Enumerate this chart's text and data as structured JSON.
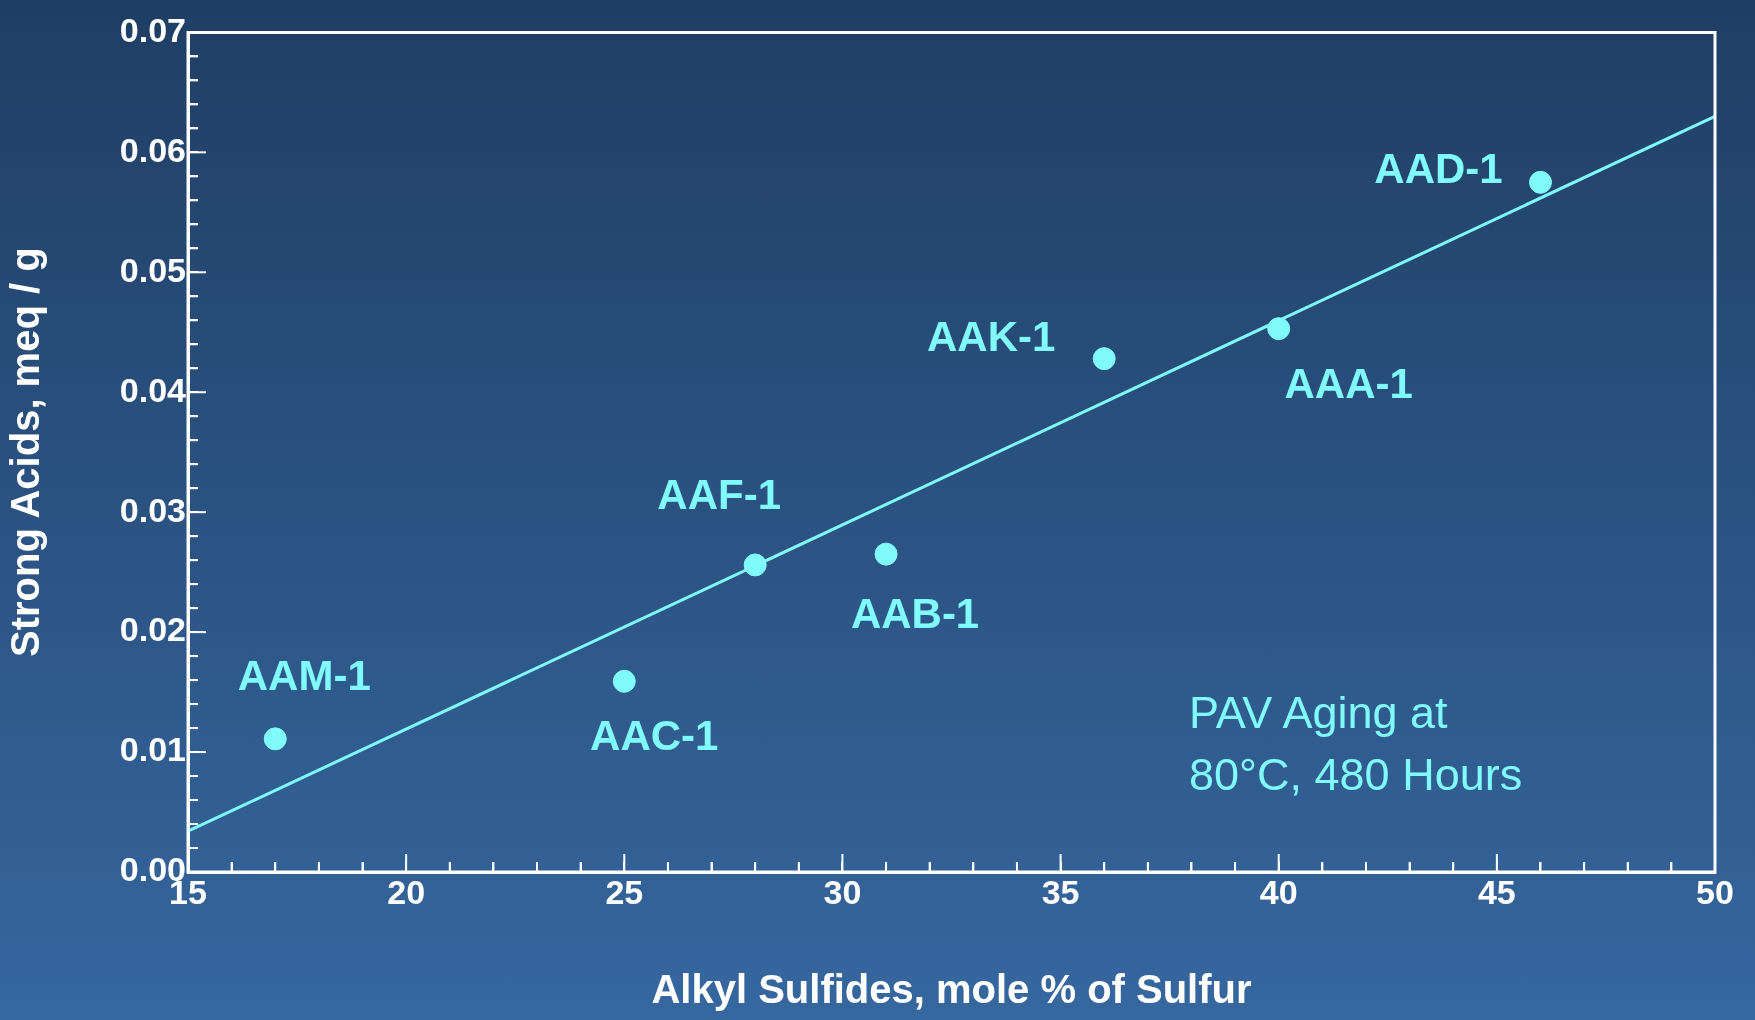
{
  "chart_data": {
    "type": "scatter",
    "xlabel": "Alkyl Sulfides, mole % of Sulfur",
    "ylabel": "Strong Acids, meq / g",
    "xlim": [
      15,
      50
    ],
    "ylim": [
      0,
      0.07
    ],
    "xticks": [
      15,
      {
        "value": 16,
        "label": null
      },
      {
        "value": 17,
        "label": null
      },
      {
        "value": 18,
        "label": null
      },
      {
        "value": 19,
        "label": null
      },
      20,
      {
        "value": 21,
        "label": null
      },
      {
        "value": 22,
        "label": null
      },
      {
        "value": 23,
        "label": null
      },
      {
        "value": 24,
        "label": null
      },
      25,
      {
        "value": 26,
        "label": null
      },
      {
        "value": 27,
        "label": null
      },
      {
        "value": 28,
        "label": null
      },
      {
        "value": 29,
        "label": null
      },
      30,
      {
        "value": 31,
        "label": null
      },
      {
        "value": 32,
        "label": null
      },
      {
        "value": 33,
        "label": null
      },
      {
        "value": 34,
        "label": null
      },
      35,
      {
        "value": 36,
        "label": null
      },
      {
        "value": 37,
        "label": null
      },
      {
        "value": 38,
        "label": null
      },
      {
        "value": 39,
        "label": null
      },
      40,
      {
        "value": 41,
        "label": null
      },
      {
        "value": 42,
        "label": null
      },
      {
        "value": 43,
        "label": null
      },
      {
        "value": 44,
        "label": null
      },
      45,
      {
        "value": 46,
        "label": null
      },
      {
        "value": 47,
        "label": null
      },
      {
        "value": 48,
        "label": null
      },
      {
        "value": 49,
        "label": null
      },
      50
    ],
    "yticks": [
      {
        "value": 0,
        "label": "0.00"
      },
      {
        "value": 0.002,
        "label": null
      },
      {
        "value": 0.004,
        "label": null
      },
      {
        "value": 0.006,
        "label": null
      },
      {
        "value": 0.008,
        "label": null
      },
      {
        "value": 0.01,
        "label": "0.01"
      },
      {
        "value": 0.012,
        "label": null
      },
      {
        "value": 0.014,
        "label": null
      },
      {
        "value": 0.016,
        "label": null
      },
      {
        "value": 0.018,
        "label": null
      },
      {
        "value": 0.02,
        "label": "0.02"
      },
      {
        "value": 0.022,
        "label": null
      },
      {
        "value": 0.024,
        "label": null
      },
      {
        "value": 0.026,
        "label": null
      },
      {
        "value": 0.028,
        "label": null
      },
      {
        "value": 0.03,
        "label": "0.03"
      },
      {
        "value": 0.032,
        "label": null
      },
      {
        "value": 0.034,
        "label": null
      },
      {
        "value": 0.036,
        "label": null
      },
      {
        "value": 0.038,
        "label": null
      },
      {
        "value": 0.04,
        "label": "0.04"
      },
      {
        "value": 0.042,
        "label": null
      },
      {
        "value": 0.044,
        "label": null
      },
      {
        "value": 0.046,
        "label": null
      },
      {
        "value": 0.048,
        "label": null
      },
      {
        "value": 0.05,
        "label": "0.05"
      },
      {
        "value": 0.052,
        "label": null
      },
      {
        "value": 0.054,
        "label": null
      },
      {
        "value": 0.056,
        "label": null
      },
      {
        "value": 0.058,
        "label": null
      },
      {
        "value": 0.06,
        "label": "0.06"
      },
      {
        "value": 0.062,
        "label": null
      },
      {
        "value": 0.064,
        "label": null
      },
      {
        "value": 0.066,
        "label": null
      },
      {
        "value": 0.068,
        "label": null
      },
      {
        "value": 0.07,
        "label": "0.07"
      }
    ],
    "series": [
      {
        "color": "#80fafa",
        "x": [
          17,
          25,
          28,
          31,
          36,
          40,
          46
        ],
        "values": [
          0.0111,
          0.0159,
          0.0256,
          0.0265,
          0.0428,
          0.0453,
          0.0575
        ],
        "marker": "circle"
      },
      {
        "type": "line",
        "color": "#80fafa",
        "x": [
          15,
          50
        ],
        "values": [
          0.0034,
          0.063
        ],
        "marker": "none",
        "line_style": "solid"
      }
    ],
    "annotations": [
      {
        "text": "AAM-1",
        "x": 17,
        "y": 0.0111
      },
      {
        "text": "AAC-1",
        "x": 25,
        "y": 0.0159
      },
      {
        "text": "AAF-1",
        "x": 28,
        "y": 0.0256
      },
      {
        "text": "AAB-1",
        "x": 31,
        "y": 0.0265
      },
      {
        "text": "AAK-1",
        "x": 36,
        "y": 0.0428
      },
      {
        "text": "AAA-1",
        "x": 40,
        "y": 0.0453
      },
      {
        "text": "AAD-1",
        "x": 46,
        "y": 0.0575
      },
      "PAV Aging at\n80°C, 480 Hours"
    ],
    "grid": false,
    "legend": false
  }
}
